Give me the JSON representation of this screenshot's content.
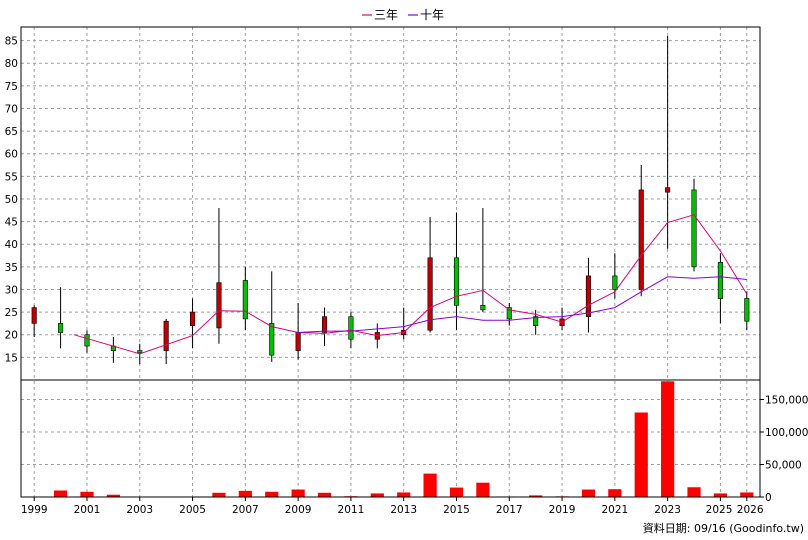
{
  "legend": [
    {
      "label": "三年",
      "color": "#e0007a"
    },
    {
      "label": "十年",
      "color": "#8a00d4"
    }
  ],
  "source_text": "資料日期: 09/16  (Goodinfo.tw)",
  "colors": {
    "up": "#c00000",
    "down": "#00c000",
    "volume": "#ff0000",
    "grid": "#a0a0a0"
  },
  "chart_data": [
    {
      "type": "candlestick",
      "title": "",
      "years": [
        1999,
        2000,
        2001,
        2002,
        2003,
        2004,
        2005,
        2006,
        2007,
        2008,
        2009,
        2010,
        2011,
        2012,
        2013,
        2014,
        2015,
        2016,
        2017,
        2018,
        2019,
        2020,
        2021,
        2022,
        2023,
        2024,
        2025,
        2026
      ],
      "x_tick_labels": [
        "1999",
        "2001",
        "2003",
        "2005",
        "2007",
        "2009",
        "2011",
        "2013",
        "2015",
        "2017",
        "2019",
        "2021",
        "2023",
        "2025",
        "2026"
      ],
      "y_ticks": [
        15,
        20,
        25,
        30,
        35,
        40,
        45,
        50,
        55,
        60,
        65,
        70,
        75,
        80,
        85
      ],
      "ylim": [
        10,
        88
      ],
      "candles": [
        {
          "year": 1999,
          "open": 22.5,
          "close": 26,
          "high": 26.5,
          "low": 19.5
        },
        {
          "year": 2000,
          "open": 22.5,
          "close": 20.5,
          "high": 30.5,
          "low": 17
        },
        {
          "year": 2001,
          "open": 20,
          "close": 17.5,
          "high": 21,
          "low": 16
        },
        {
          "year": 2002,
          "open": 17.5,
          "close": 16.5,
          "high": 19.5,
          "low": 13.8
        },
        {
          "year": 2003,
          "open": 16.5,
          "close": 16,
          "high": 18,
          "low": 13.5
        },
        {
          "year": 2004,
          "open": 16.5,
          "close": 23,
          "high": 23.5,
          "low": 13.5
        },
        {
          "year": 2005,
          "open": 22,
          "close": 25,
          "high": 28,
          "low": 17
        },
        {
          "year": 2006,
          "open": 21.5,
          "close": 31.5,
          "high": 48,
          "low": 18
        },
        {
          "year": 2007,
          "open": 32,
          "close": 23.5,
          "high": 35,
          "low": 21
        },
        {
          "year": 2008,
          "open": 22.5,
          "close": 15.5,
          "high": 34,
          "low": 14
        },
        {
          "year": 2009,
          "open": 16.5,
          "close": 20.5,
          "high": 27,
          "low": 14.5
        },
        {
          "year": 2010,
          "open": 20.5,
          "close": 24,
          "high": 26,
          "low": 17.5
        },
        {
          "year": 2011,
          "open": 24,
          "close": 19,
          "high": 25,
          "low": 17
        },
        {
          "year": 2012,
          "open": 19,
          "close": 20.5,
          "high": 22.5,
          "low": 17
        },
        {
          "year": 2013,
          "open": 20,
          "close": 21,
          "high": 26,
          "low": 19
        },
        {
          "year": 2014,
          "open": 21,
          "close": 37,
          "high": 46,
          "low": 20.5
        },
        {
          "year": 2015,
          "open": 37,
          "close": 26.5,
          "high": 47,
          "low": 21
        },
        {
          "year": 2016,
          "open": 26.5,
          "close": 25.5,
          "high": 48,
          "low": 25
        },
        {
          "year": 2017,
          "open": 26,
          "close": 23.5,
          "high": 27,
          "low": 22
        },
        {
          "year": 2018,
          "open": 24,
          "close": 22,
          "high": 25.5,
          "low": 20
        },
        {
          "year": 2019,
          "open": 22,
          "close": 23.5,
          "high": 26,
          "low": 21
        },
        {
          "year": 2020,
          "open": 24,
          "close": 33,
          "high": 37,
          "low": 20.5
        },
        {
          "year": 2021,
          "open": 33,
          "close": 30,
          "high": 38,
          "low": 28
        },
        {
          "year": 2022,
          "open": 30,
          "close": 52,
          "high": 57.5,
          "low": 28.5
        },
        {
          "year": 2023,
          "open": 51.5,
          "close": 52.5,
          "high": 86,
          "low": 39
        },
        {
          "year": 2024,
          "open": 52,
          "close": 35,
          "high": 54.5,
          "low": 34
        },
        {
          "year": 2025,
          "open": 36,
          "close": 28,
          "high": 38,
          "low": 22.5
        },
        {
          "year": 2026,
          "open": 28,
          "close": 23,
          "high": 29.5,
          "low": 21
        }
      ],
      "series": [
        {
          "name": "三年",
          "color": "#e0007a",
          "points": [
            [
              2000.5,
              20
            ],
            [
              2003,
              15.8
            ],
            [
              2005,
              19.8
            ],
            [
              2006,
              25.3
            ],
            [
              2007,
              25.2
            ],
            [
              2008,
              21.8
            ],
            [
              2009,
              20.5
            ],
            [
              2010,
              20.3
            ],
            [
              2011,
              21
            ],
            [
              2012,
              19.8
            ],
            [
              2013,
              20.5
            ],
            [
              2014,
              26
            ],
            [
              2015,
              28.5
            ],
            [
              2016,
              29.8
            ],
            [
              2017,
              25.5
            ],
            [
              2018,
              24.5
            ],
            [
              2019,
              22.8
            ],
            [
              2020,
              26.5
            ],
            [
              2021,
              29.5
            ],
            [
              2022,
              37.5
            ],
            [
              2023,
              44.8
            ],
            [
              2024,
              46.5
            ],
            [
              2025,
              38.5
            ],
            [
              2026,
              29
            ]
          ]
        },
        {
          "name": "十年",
          "color": "#8a00d4",
          "points": [
            [
              2009,
              20.5
            ],
            [
              2010,
              20.8
            ],
            [
              2011,
              20.8
            ],
            [
              2012,
              21.3
            ],
            [
              2013,
              21.8
            ],
            [
              2014,
              23.3
            ],
            [
              2015,
              24
            ],
            [
              2016,
              23.2
            ],
            [
              2017,
              23.2
            ],
            [
              2018,
              23.8
            ],
            [
              2019,
              24
            ],
            [
              2020,
              24.8
            ],
            [
              2021,
              26
            ],
            [
              2022,
              29.5
            ],
            [
              2023,
              32.8
            ],
            [
              2024,
              32.5
            ],
            [
              2025,
              32.8
            ],
            [
              2026,
              32.2
            ]
          ]
        }
      ]
    },
    {
      "type": "bar",
      "title": "",
      "categories": [
        1999,
        2000,
        2001,
        2002,
        2003,
        2004,
        2005,
        2006,
        2007,
        2008,
        2009,
        2010,
        2011,
        2012,
        2013,
        2014,
        2015,
        2016,
        2017,
        2018,
        2019,
        2020,
        2021,
        2022,
        2023,
        2024,
        2025,
        2026
      ],
      "values": [
        300,
        10000,
        8000,
        3500,
        600,
        700,
        800,
        6500,
        9500,
        8000,
        11500,
        6500,
        1200,
        5500,
        7000,
        36000,
        14500,
        22000,
        800,
        2500,
        1000,
        11500,
        12000,
        130000,
        178000,
        15000,
        5500,
        7000
      ],
      "y_ticks": [
        0,
        50000,
        100000,
        150000
      ],
      "y_tick_labels": [
        "0",
        "50,000",
        "100,000",
        "150,000"
      ],
      "ylim": [
        0,
        180000
      ]
    }
  ]
}
